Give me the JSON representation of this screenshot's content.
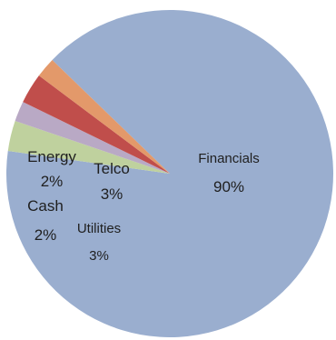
{
  "chart_data": {
    "type": "pie",
    "slices": [
      {
        "label": "Financials",
        "value": 90,
        "value_label": "90%",
        "color": "#9aaecf"
      },
      {
        "label": "Energy",
        "value": 2,
        "value_label": "2%",
        "color": "#e3996a"
      },
      {
        "label": "Telco",
        "value": 3,
        "value_label": "3%",
        "color": "#c04e4b"
      },
      {
        "label": "Cash",
        "value": 2,
        "value_label": "2%",
        "color": "#b9a9c5"
      },
      {
        "label": "Utilities",
        "value": 3,
        "value_label": "3%",
        "color": "#bfd19e"
      }
    ],
    "legend": "none"
  }
}
